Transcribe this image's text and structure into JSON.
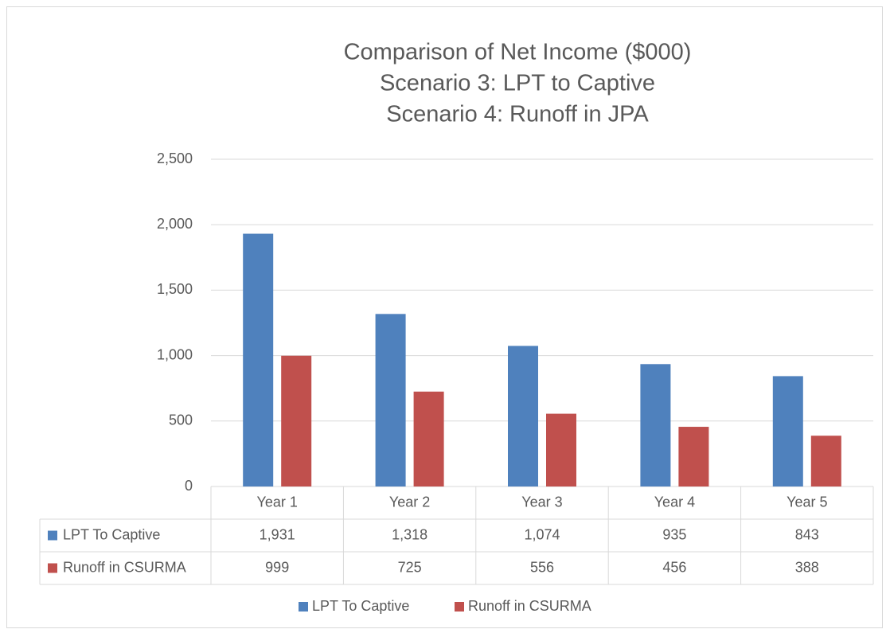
{
  "chart_data": {
    "type": "bar",
    "title": "Comparison of Net Income ($000)",
    "subtitle": [
      "Scenario 3: LPT to Captive",
      "Scenario 4: Runoff in JPA"
    ],
    "categories": [
      "Year 1",
      "Year 2",
      "Year 3",
      "Year 4",
      "Year 5"
    ],
    "series": [
      {
        "name": "LPT To Captive",
        "color": "#4f81bd",
        "values": [
          1931,
          1318,
          1074,
          935,
          843
        ],
        "value_labels": [
          "1,931",
          "1,318",
          "1,074",
          "935",
          "843"
        ]
      },
      {
        "name": "Runoff in CSURMA",
        "color": "#c0504d",
        "values": [
          999,
          725,
          556,
          456,
          388
        ],
        "value_labels": [
          "999",
          "725",
          "556",
          "456",
          "388"
        ]
      }
    ],
    "ylim": [
      0,
      2500
    ],
    "yticks": [
      0,
      500,
      {
        "value": 1000,
        "label": "1,000"
      },
      {
        "value": 1500,
        "label": "1,500"
      },
      {
        "value": 2000,
        "label": "2,000"
      },
      {
        "value": 2500,
        "label": "2,500"
      }
    ],
    "grid": true,
    "legend": "bottom"
  }
}
